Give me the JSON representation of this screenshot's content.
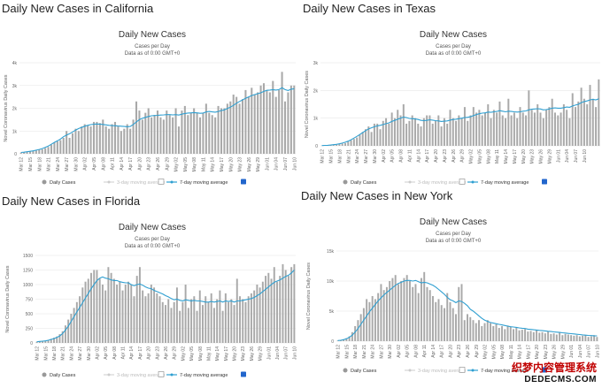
{
  "watermark": {
    "line1": "织梦内容管理系统",
    "line2": "DEDECMS.COM"
  },
  "colors": {
    "bars": "#a9a9a9",
    "moving_average": "#2f9fd1",
    "checkbox_on": "#2266cc"
  },
  "charts": [
    {
      "page_title": "Daily New Cases in California",
      "title": "Daily New Cases",
      "subtitle1": "Cases per Day",
      "subtitle2": "Data as of 0:00 GMT+0",
      "ylabel": "Novel Coronavirus Daily Cases",
      "yticks": [
        "0",
        "1k",
        "2k",
        "3k",
        "4k"
      ],
      "xticks": [
        "Mar 12",
        "Mar 15",
        "Mar 18",
        "Mar 21",
        "Mar 24",
        "Mar 27",
        "Mar 30",
        "Apr 02",
        "Apr 05",
        "Apr 08",
        "Apr 11",
        "Apr 14",
        "Apr 17",
        "Apr 20",
        "Apr 23",
        "Apr 26",
        "Apr 29",
        "May 02",
        "May 05",
        "May 08",
        "May 11",
        "May 14",
        "May 17",
        "May 20",
        "May 23",
        "May 26",
        "May 29",
        "Jun 01",
        "Jun 04",
        "Jun 07",
        "Jun 10"
      ],
      "legend": [
        "Daily Cases",
        "3-day moving average",
        "7-day moving average"
      ]
    },
    {
      "page_title": "Daily New Cases in Texas",
      "title": "Daily New Cases",
      "subtitle1": "Cases per Day",
      "subtitle2": "Data as of 0:00 GMT+0",
      "ylabel": "Novel Coronavirus Daily Cases",
      "yticks": [
        "0",
        "1k",
        "2k",
        "3k"
      ],
      "xticks": [
        "Mar 12",
        "Mar 15",
        "Mar 18",
        "Mar 21",
        "Mar 24",
        "Mar 27",
        "Mar 30",
        "Apr 02",
        "Apr 05",
        "Apr 08",
        "Apr 11",
        "Apr 14",
        "Apr 17",
        "Apr 20",
        "Apr 23",
        "Apr 26",
        "Apr 29",
        "May 02",
        "May 05",
        "May 08",
        "May 11",
        "May 14",
        "May 17",
        "May 20",
        "May 23",
        "May 26",
        "May 29",
        "Jun 01",
        "Jun 04",
        "Jun 07",
        "Jun 10"
      ],
      "legend": [
        "Daily Cases",
        "3-day moving average",
        "7-day moving average"
      ]
    },
    {
      "page_title": "Daily New Cases in Florida",
      "title": "Daily New Cases",
      "subtitle1": "Cases per Day",
      "subtitle2": "Data as of 0:00 GMT+0",
      "ylabel": "Novel Coronavirus Daily Cases",
      "yticks": [
        "0",
        "250",
        "500",
        "750",
        "1000",
        "1250",
        "1500"
      ],
      "xticks": [
        "Mar 12",
        "Mar 15",
        "Mar 18",
        "Mar 21",
        "Mar 24",
        "Mar 27",
        "Mar 30",
        "Apr 02",
        "Apr 05",
        "Apr 08",
        "Apr 11",
        "Apr 14",
        "Apr 17",
        "Apr 20",
        "Apr 23",
        "Apr 26",
        "Apr 29",
        "May 02",
        "May 05",
        "May 08",
        "May 11",
        "May 14",
        "May 17",
        "May 20",
        "May 23",
        "May 26",
        "May 29",
        "Jun 01",
        "Jun 04",
        "Jun 07",
        "Jun 10"
      ],
      "legend": [
        "Daily Cases",
        "3-day moving average",
        "7-day moving average"
      ]
    },
    {
      "page_title": "Daily New Cases in New York",
      "title": "Daily New Cases",
      "subtitle1": "Cases per Day",
      "subtitle2": "Data as of 0:00 GMT+0",
      "ylabel": "Novel Coronavirus Daily Cases",
      "yticks": [
        "0",
        "5k",
        "10k",
        "15k"
      ],
      "xticks": [
        "Mar 12",
        "Mar 15",
        "Mar 18",
        "Mar 21",
        "Mar 24",
        "Mar 27",
        "Mar 30",
        "Apr 02",
        "Apr 05",
        "Apr 08",
        "Apr 11",
        "Apr 14",
        "Apr 17",
        "Apr 20",
        "Apr 23",
        "Apr 26",
        "Apr 29",
        "May 02",
        "May 05",
        "May 08",
        "May 11",
        "May 14",
        "May 17",
        "May 20",
        "May 23",
        "May 26",
        "May 29",
        "Jun 01",
        "Jun 04",
        "Jun 07",
        "Jun 10"
      ],
      "legend": [
        "Daily Cases",
        "3-day moving average",
        "7-day moving average"
      ]
    }
  ],
  "chart_data": [
    {
      "type": "bar",
      "title": "Daily New Cases in California",
      "ylim": [
        0,
        4000
      ],
      "x_start": "Mar 12",
      "series": [
        {
          "name": "Daily Cases",
          "values": [
            50,
            60,
            80,
            100,
            120,
            150,
            180,
            200,
            250,
            300,
            400,
            500,
            550,
            600,
            700,
            1000,
            700,
            900,
            1100,
            1000,
            1200,
            1300,
            1250,
            1200,
            1400,
            1400,
            1350,
            1500,
            1200,
            1100,
            1300,
            1400,
            1200,
            1000,
            1100,
            1300,
            1100,
            1500,
            2300,
            1900,
            1500,
            1800,
            2000,
            1600,
            1700,
            1900,
            1600,
            1500,
            1900,
            1700,
            1600,
            2000,
            1200,
            1900,
            2100,
            1700,
            1800,
            2000,
            1800,
            1600,
            1800,
            2200,
            1800,
            1700,
            1600,
            2100,
            2000,
            2000,
            2200,
            2300,
            2600,
            2500,
            2200,
            2400,
            2800,
            2500,
            2900,
            2600,
            2700,
            3000,
            3100,
            2800,
            2700,
            3200,
            2500,
            2800,
            3600,
            2300,
            2700,
            3000,
            3000
          ]
        },
        {
          "name": "7-day moving average",
          "values": [
            60,
            70,
            90,
            110,
            130,
            160,
            190,
            230,
            280,
            340,
            420,
            500,
            570,
            650,
            750,
            820,
            880,
            960,
            1040,
            1110,
            1160,
            1210,
            1250,
            1280,
            1300,
            1310,
            1300,
            1290,
            1270,
            1250,
            1240,
            1230,
            1220,
            1210,
            1200,
            1190,
            1200,
            1290,
            1400,
            1500,
            1560,
            1600,
            1640,
            1670,
            1680,
            1690,
            1700,
            1710,
            1720,
            1720,
            1710,
            1720,
            1700,
            1740,
            1770,
            1790,
            1800,
            1810,
            1800,
            1780,
            1790,
            1840,
            1860,
            1840,
            1830,
            1860,
            1900,
            1930,
            1990,
            2050,
            2130,
            2220,
            2300,
            2370,
            2440,
            2500,
            2560,
            2600,
            2640,
            2680,
            2740,
            2790,
            2800,
            2820,
            2800,
            2820,
            2900,
            2820,
            2780,
            2840,
            2860
          ]
        }
      ]
    },
    {
      "type": "bar",
      "title": "Daily New Cases in Texas",
      "ylim": [
        0,
        3000
      ],
      "x_start": "Mar 12",
      "series": [
        {
          "name": "Daily Cases",
          "values": [
            5,
            10,
            15,
            20,
            30,
            40,
            60,
            80,
            100,
            150,
            200,
            250,
            300,
            400,
            500,
            600,
            700,
            500,
            800,
            800,
            600,
            900,
            1000,
            800,
            1200,
            1000,
            1300,
            1100,
            1500,
            800,
            900,
            1100,
            1000,
            800,
            700,
            1000,
            1100,
            1100,
            800,
            900,
            1100,
            700,
            1000,
            800,
            1300,
            1000,
            900,
            1100,
            1000,
            1400,
            900,
            1100,
            1400,
            1200,
            1300,
            1100,
            1200,
            1500,
            1000,
            1300,
            1200,
            1600,
            1100,
            1000,
            1700,
            1100,
            1200,
            1000,
            1400,
            1200,
            1100,
            2000,
            1300,
            1200,
            1500,
            1200,
            1000,
            1300,
            1400,
            1700,
            1200,
            1100,
            1200,
            1500,
            1300,
            1000,
            1900,
            1400,
            1600,
            2100,
            1700,
            1500,
            2200,
            1700,
            1400,
            2400
          ]
        },
        {
          "name": "7-day moving average",
          "values": [
            10,
            15,
            20,
            28,
            40,
            55,
            75,
            100,
            130,
            170,
            220,
            280,
            340,
            410,
            480,
            550,
            610,
            650,
            690,
            720,
            740,
            770,
            800,
            830,
            880,
            920,
            960,
            1000,
            1040,
            1020,
            990,
            980,
            970,
            950,
            920,
            910,
            920,
            940,
            930,
            910,
            900,
            880,
            890,
            900,
            930,
            950,
            960,
            980,
            1000,
            1020,
            1030,
            1050,
            1090,
            1130,
            1160,
            1180,
            1190,
            1220,
            1210,
            1230,
            1240,
            1270,
            1250,
            1230,
            1250,
            1240,
            1230,
            1220,
            1230,
            1250,
            1260,
            1300,
            1320,
            1330,
            1340,
            1330,
            1300,
            1310,
            1330,
            1360,
            1370,
            1360,
            1360,
            1380,
            1400,
            1390,
            1440,
            1470,
            1500,
            1560,
            1600,
            1620,
            1660,
            1680,
            1660,
            1700
          ]
        }
      ]
    },
    {
      "type": "bar",
      "title": "Daily New Cases in Florida",
      "ylim": [
        0,
        1500
      ],
      "x_start": "Mar 12",
      "series": [
        {
          "name": "Daily Cases",
          "values": [
            20,
            25,
            30,
            40,
            50,
            70,
            90,
            110,
            150,
            200,
            300,
            400,
            500,
            600,
            700,
            800,
            950,
            1050,
            1100,
            1200,
            1250,
            1250,
            1100,
            1000,
            900,
            1300,
            1200,
            1100,
            1000,
            1050,
            900,
            1000,
            1050,
            1000,
            800,
            1150,
            1300,
            900,
            800,
            850,
            1000,
            950,
            850,
            800,
            700,
            650,
            750,
            600,
            700,
            950,
            550,
            700,
            1000,
            600,
            750,
            800,
            550,
            900,
            650,
            800,
            700,
            850,
            600,
            750,
            900,
            550,
            850,
            700,
            750,
            650,
            1100,
            800,
            750,
            700,
            800,
            850,
            900,
            1000,
            950,
            1050,
            1150,
            1200,
            1100,
            1300,
            1050,
            1150,
            1350,
            1250,
            1150,
            1300,
            1350
          ]
        },
        {
          "name": "7-day moving average",
          "values": [
            20,
            25,
            30,
            35,
            45,
            60,
            75,
            95,
            120,
            160,
            220,
            290,
            370,
            450,
            530,
            610,
            690,
            770,
            850,
            930,
            1000,
            1070,
            1110,
            1130,
            1110,
            1100,
            1080,
            1070,
            1070,
            1050,
            1040,
            1030,
            1030,
            1000,
            980,
            1000,
            1010,
            990,
            960,
            940,
            930,
            900,
            880,
            860,
            840,
            810,
            790,
            760,
            740,
            750,
            730,
            720,
            740,
            730,
            720,
            730,
            720,
            720,
            710,
            700,
            700,
            710,
            700,
            710,
            720,
            700,
            720,
            710,
            720,
            700,
            720,
            720,
            730,
            740,
            750,
            760,
            780,
            810,
            840,
            880,
            920,
            960,
            1000,
            1040,
            1060,
            1080,
            1110,
            1140,
            1160,
            1200,
            1250
          ]
        }
      ]
    },
    {
      "type": "bar",
      "title": "Daily New Cases in New York",
      "ylim": [
        0,
        15000
      ],
      "x_start": "Mar 12",
      "series": [
        {
          "name": "Daily Cases",
          "values": [
            100,
            200,
            300,
            500,
            800,
            1500,
            2500,
            3500,
            4500,
            5500,
            7000,
            6500,
            7500,
            7000,
            8000,
            9500,
            8500,
            9000,
            10000,
            10500,
            11000,
            9500,
            10000,
            10500,
            11000,
            10000,
            9000,
            9500,
            8000,
            10500,
            11500,
            9000,
            8500,
            7500,
            6500,
            7000,
            6000,
            5500,
            8000,
            6500,
            5500,
            4500,
            9000,
            9500,
            3500,
            4500,
            4000,
            3500,
            3000,
            3500,
            2500,
            3000,
            3500,
            3000,
            2500,
            2800,
            2200,
            2500,
            2000,
            2600,
            2400,
            2000,
            2200,
            1800,
            1900,
            2000,
            1600,
            1700,
            1500,
            1800,
            1400,
            1500,
            1300,
            1600,
            1200,
            1300,
            1100,
            1400,
            1000,
            1200,
            1100,
            1000,
            900,
            1000,
            800,
            900,
            1000,
            700,
            800,
            1000,
            700
          ]
        },
        {
          "name": "7-day moving average",
          "values": [
            100,
            150,
            250,
            400,
            650,
            1000,
            1500,
            2100,
            2800,
            3500,
            4200,
            4900,
            5500,
            6100,
            6700,
            7200,
            7700,
            8100,
            8500,
            8900,
            9300,
            9600,
            9800,
            10000,
            10100,
            10100,
            10000,
            10100,
            9900,
            9700,
            9800,
            9700,
            9500,
            9300,
            9000,
            8600,
            8200,
            7800,
            7300,
            6900,
            6700,
            6400,
            6700,
            6600,
            6300,
            5900,
            5300,
            5000,
            4600,
            4200,
            3800,
            3500,
            3300,
            3100,
            3000,
            2900,
            2800,
            2700,
            2600,
            2500,
            2400,
            2350,
            2300,
            2200,
            2150,
            2100,
            2000,
            1950,
            1900,
            1850,
            1800,
            1750,
            1700,
            1650,
            1600,
            1550,
            1500,
            1450,
            1400,
            1350,
            1300,
            1250,
            1200,
            1150,
            1100,
            1050,
            1000,
            950,
            920,
            900,
            880
          ]
        }
      ]
    }
  ]
}
